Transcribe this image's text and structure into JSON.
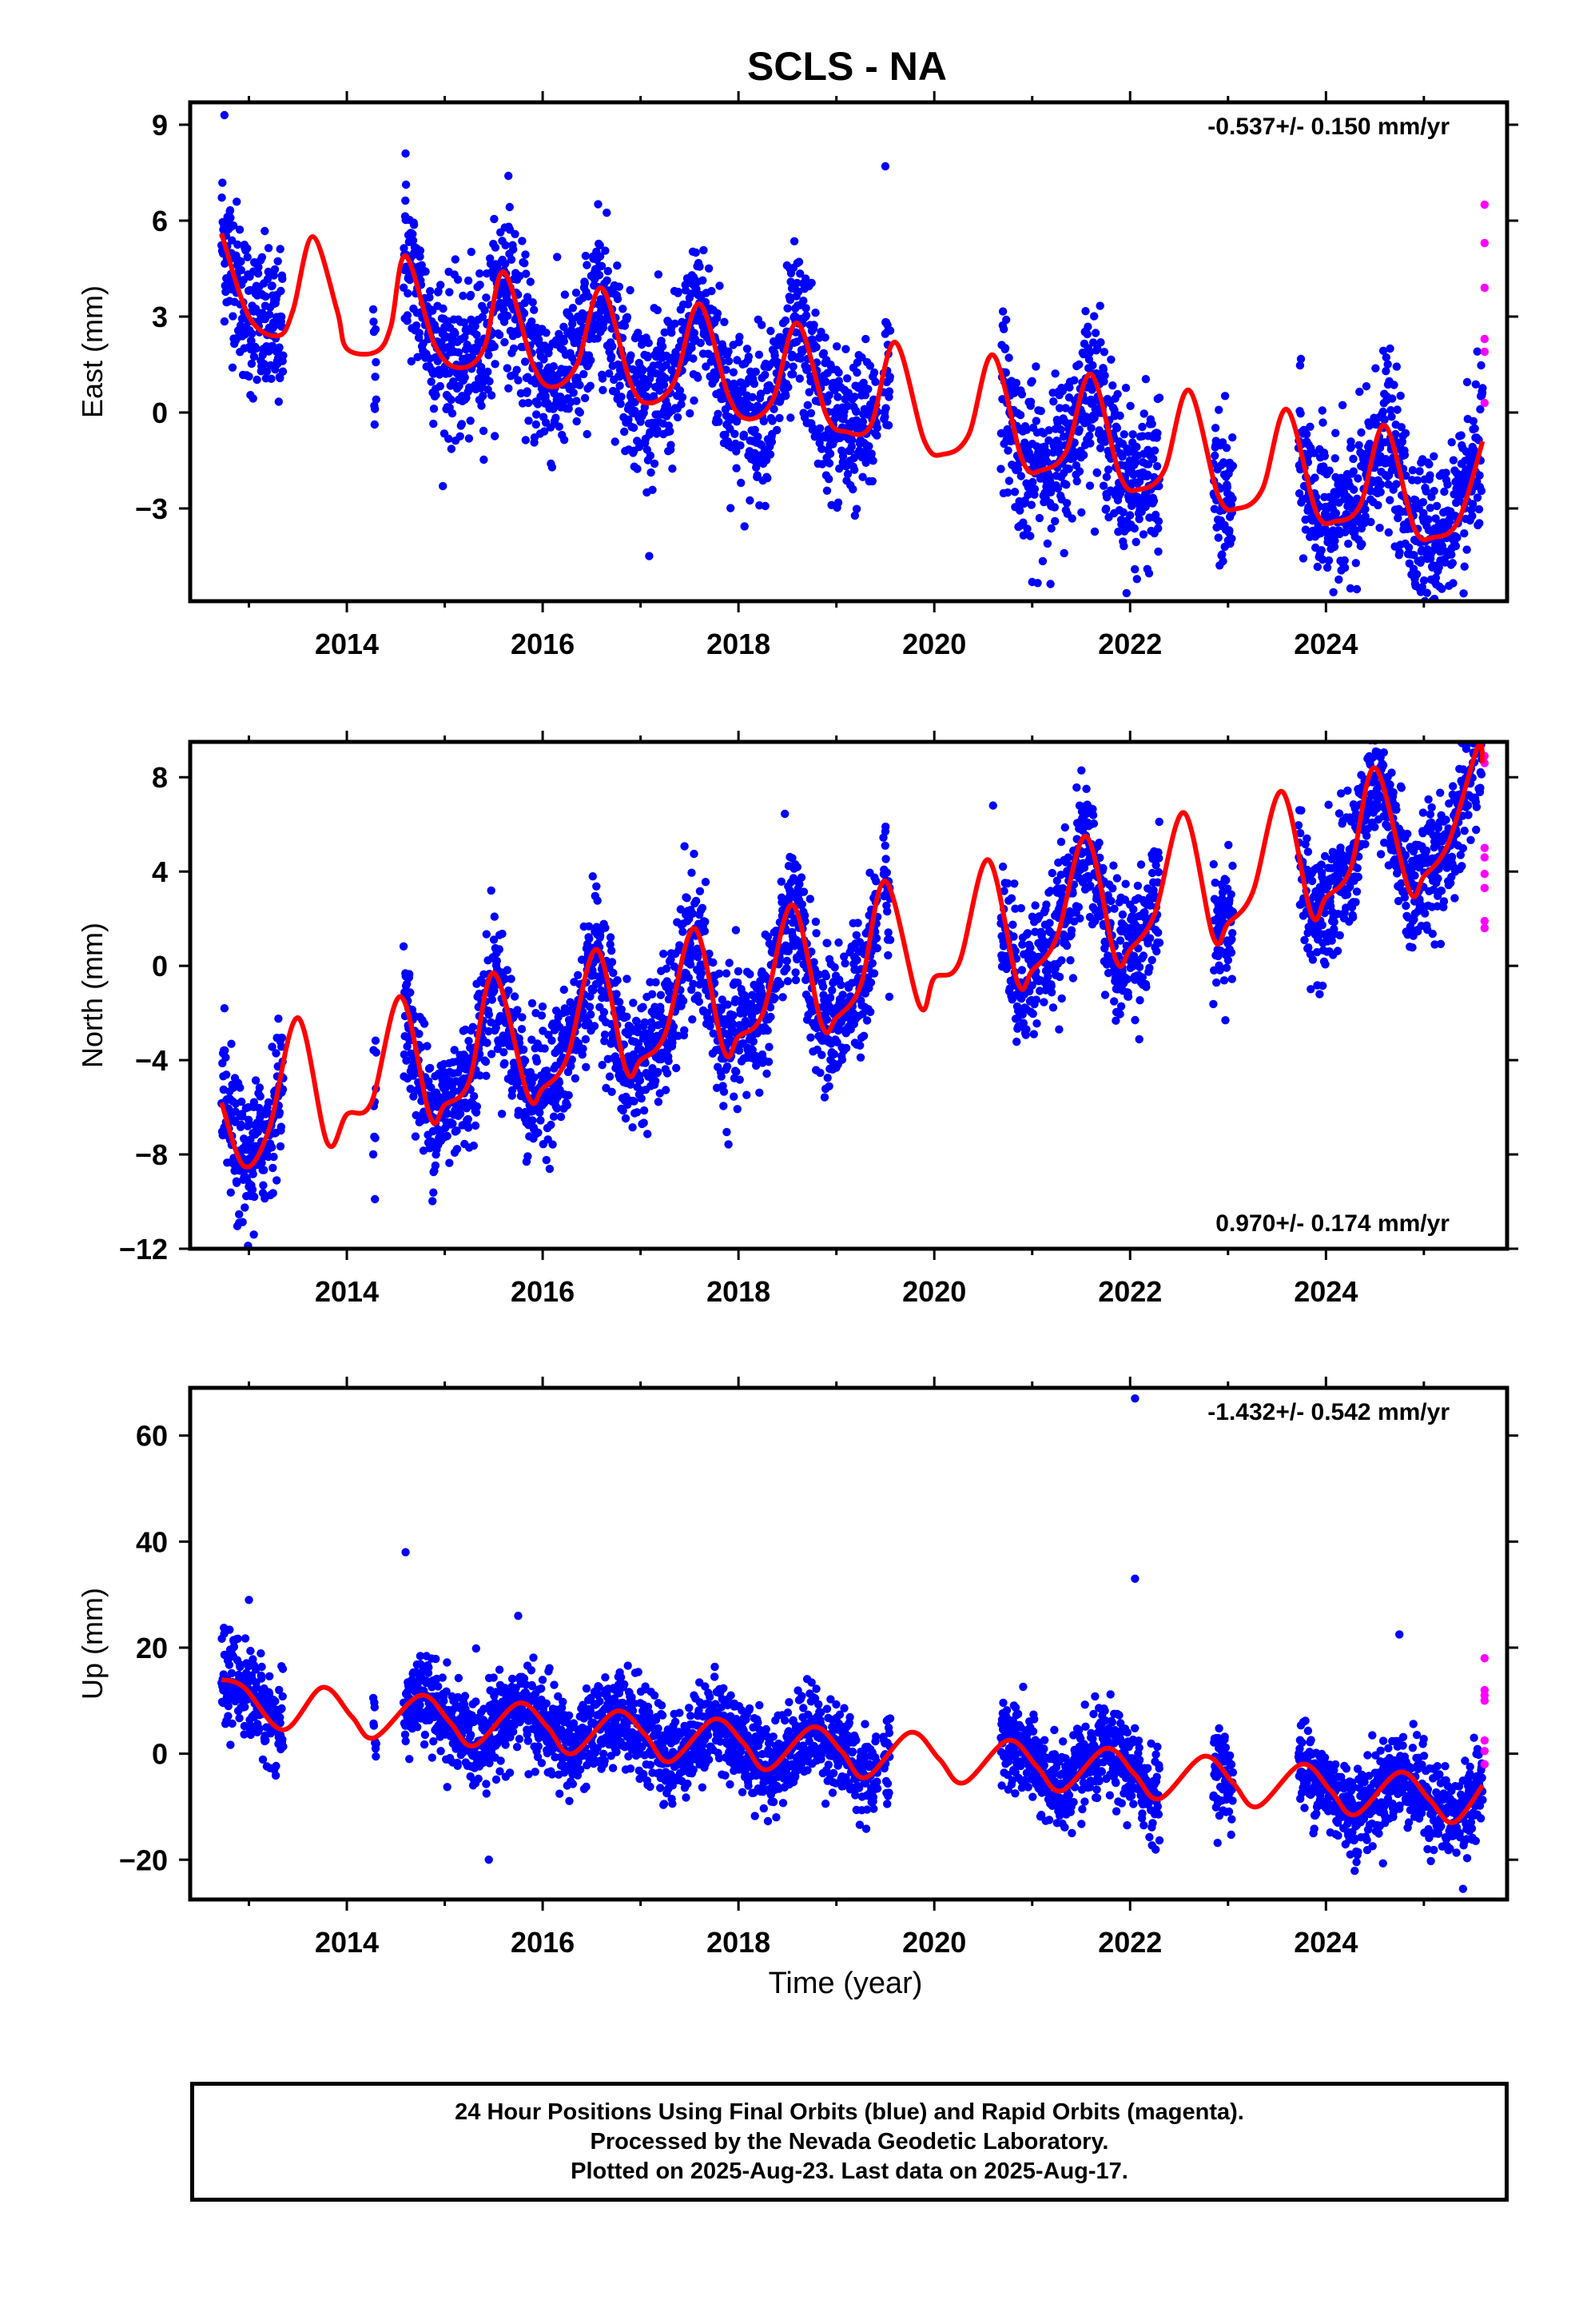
{
  "title": "SCLS - NA",
  "time_axis": {
    "label": "Time (year)",
    "ticks": [
      "2014",
      "2016",
      "2018",
      "2020",
      "2022",
      "2024"
    ]
  },
  "colors": {
    "final_orbits": "#0000ff",
    "rapid_orbits": "#ff00ff",
    "model_fit": "#ff0000",
    "axes": "#000000"
  },
  "footer": {
    "line1": "24 Hour Positions Using Final Orbits (blue) and Rapid Orbits (magenta).",
    "line2": "Processed by the Nevada Geodetic Laboratory.",
    "line3": "Plotted on 2025-Aug-23. Last data on 2025-Aug-17."
  },
  "chart_data": [
    {
      "type": "scatter",
      "component": "East",
      "ylabel": "East (mm)",
      "xlabel": "",
      "xlim": [
        2012.4,
        2025.85
      ],
      "ylim": [
        -5.9,
        9.7
      ],
      "yticks": [
        -3,
        0,
        3,
        6,
        9
      ],
      "xticks": [
        2014,
        2016,
        2018,
        2020,
        2022,
        2024
      ],
      "rate_label": "-0.537+/- 0.150 mm/yr",
      "rate_label_position": "top-right",
      "data_segments": [
        [
          2012.72,
          2013.35
        ],
        [
          2014.27,
          2014.3
        ],
        [
          2014.58,
          2019.42
        ],
        [
          2019.48,
          2019.55
        ],
        [
          2020.68,
          2022.3
        ],
        [
          2022.85,
          2023.05
        ],
        [
          2023.72,
          2025.6
        ]
      ],
      "series": [
        {
          "name": "Final Orbits",
          "style": "points",
          "approx_trend": {
            "intercept_at_2012_7": 5.6,
            "rate_mm_per_yr": -0.537,
            "annual_amplitude": 1.8,
            "scatter_sd": 1.2
          },
          "outliers": [
            {
              "x": 2012.75,
              "y": 9.3
            },
            {
              "x": 2014.6,
              "y": 8.1
            },
            {
              "x": 2015.65,
              "y": 7.4
            },
            {
              "x": 2019.5,
              "y": 7.7
            },
            {
              "x": 2021.0,
              "y": -5.3
            },
            {
              "x": 2024.25,
              "y": -5.5
            }
          ]
        },
        {
          "name": "Rapid Orbits",
          "style": "points",
          "points": [
            {
              "x": 2025.62,
              "y": 6.5
            },
            {
              "x": 2025.62,
              "y": 5.3
            },
            {
              "x": 2025.62,
              "y": 3.9
            },
            {
              "x": 2025.62,
              "y": 2.3
            },
            {
              "x": 2025.62,
              "y": 1.9
            },
            {
              "x": 2025.62,
              "y": 0.3
            }
          ]
        },
        {
          "name": "Model fit",
          "style": "line",
          "x": [
            2012.72,
            2013.0,
            2013.3,
            2013.45,
            2013.65,
            2013.9,
            2014.0,
            2014.3,
            2014.45,
            2014.6,
            2014.9,
            2015.15,
            2015.4,
            2015.6,
            2015.9,
            2016.1,
            2016.35,
            2016.6,
            2016.9,
            2017.1,
            2017.35,
            2017.6,
            2017.9,
            2018.1,
            2018.35,
            2018.6,
            2018.9,
            2019.1,
            2019.35,
            2019.6,
            2019.9,
            2020.1,
            2020.35,
            2020.6,
            2020.9,
            2021.1,
            2021.35,
            2021.6,
            2021.9,
            2022.1,
            2022.35,
            2022.6,
            2022.9,
            2023.1,
            2023.35,
            2023.6,
            2023.9,
            2024.1,
            2024.35,
            2024.6,
            2024.9,
            2025.1,
            2025.35,
            2025.6
          ],
          "y": [
            5.6,
            3.0,
            2.4,
            3.2,
            5.5,
            3.2,
            2.0,
            1.9,
            2.7,
            4.9,
            2.1,
            1.4,
            2.0,
            4.4,
            1.5,
            0.8,
            1.5,
            3.9,
            0.9,
            0.3,
            1.0,
            3.4,
            0.5,
            -0.2,
            0.4,
            2.8,
            -0.1,
            -0.6,
            -0.4,
            2.2,
            -0.9,
            -1.3,
            -0.7,
            1.8,
            -1.5,
            -1.8,
            -1.2,
            1.2,
            -2.0,
            -2.4,
            -1.8,
            0.7,
            -2.6,
            -3.0,
            -2.4,
            0.1,
            -3.1,
            -3.4,
            -2.9,
            -0.4,
            -3.6,
            -3.9,
            -3.4,
            -0.9
          ]
        }
      ]
    },
    {
      "type": "scatter",
      "component": "North",
      "ylabel": "North (mm)",
      "xlabel": "",
      "xlim": [
        2012.4,
        2025.85
      ],
      "ylim": [
        -12.0,
        9.5
      ],
      "yticks": [
        -12,
        -8,
        -4,
        0,
        4,
        8
      ],
      "xticks": [
        2014,
        2016,
        2018,
        2020,
        2022,
        2024
      ],
      "rate_label": "0.970+/- 0.174 mm/yr",
      "rate_label_position": "bottom-right",
      "data_segments": [
        [
          2012.72,
          2013.35
        ],
        [
          2014.27,
          2014.3
        ],
        [
          2014.58,
          2019.42
        ],
        [
          2019.48,
          2019.55
        ],
        [
          2020.68,
          2022.3
        ],
        [
          2022.85,
          2023.05
        ],
        [
          2023.72,
          2025.6
        ]
      ],
      "series": [
        {
          "name": "Final Orbits",
          "style": "points",
          "approx_trend": {
            "intercept_at_2012_7": -7.0,
            "rate_mm_per_yr": 0.97,
            "annual_amplitude": 2.3,
            "scatter_sd": 1.4
          },
          "outliers": [
            {
              "x": 2012.75,
              "y": -1.8
            },
            {
              "x": 2012.9,
              "y": -10.9
            },
            {
              "x": 2013.05,
              "y": -11.4
            },
            {
              "x": 2019.5,
              "y": 5.7
            },
            {
              "x": 2020.6,
              "y": 6.8
            },
            {
              "x": 2024.45,
              "y": 8.8
            }
          ]
        },
        {
          "name": "Rapid Orbits",
          "style": "points",
          "points": [
            {
              "x": 2025.62,
              "y": 8.9
            },
            {
              "x": 2025.62,
              "y": 8.6
            },
            {
              "x": 2025.62,
              "y": 5.0
            },
            {
              "x": 2025.62,
              "y": 4.6
            },
            {
              "x": 2025.62,
              "y": 3.9
            },
            {
              "x": 2025.62,
              "y": 3.3
            },
            {
              "x": 2025.62,
              "y": 1.9
            },
            {
              "x": 2025.62,
              "y": 1.6
            }
          ]
        },
        {
          "name": "Model fit",
          "style": "line",
          "x": [
            2012.72,
            2012.95,
            2013.2,
            2013.5,
            2013.8,
            2014.0,
            2014.25,
            2014.55,
            2014.85,
            2015.0,
            2015.25,
            2015.5,
            2015.85,
            2016.0,
            2016.25,
            2016.55,
            2016.85,
            2017.0,
            2017.25,
            2017.55,
            2017.85,
            2018.0,
            2018.25,
            2018.55,
            2018.85,
            2019.0,
            2019.25,
            2019.5,
            2019.85,
            2020.0,
            2020.25,
            2020.55,
            2020.85,
            2021.0,
            2021.25,
            2021.55,
            2021.85,
            2022.0,
            2022.25,
            2022.55,
            2022.85,
            2023.0,
            2023.25,
            2023.55,
            2023.85,
            2024.0,
            2024.25,
            2024.5,
            2024.85,
            2025.0,
            2025.25,
            2025.55,
            2025.6
          ],
          "y": [
            -5.8,
            -8.5,
            -7.0,
            -2.2,
            -7.5,
            -6.3,
            -5.8,
            -1.3,
            -6.4,
            -5.9,
            -4.9,
            -0.3,
            -5.5,
            -5.2,
            -3.9,
            0.7,
            -4.4,
            -4.0,
            -2.9,
            1.6,
            -3.6,
            -3.0,
            -2.0,
            2.6,
            -2.5,
            -2.2,
            -0.8,
            3.6,
            -1.7,
            -0.5,
            0.1,
            4.5,
            -0.7,
            -0.2,
            1.2,
            5.5,
            0.3,
            0.7,
            2.2,
            6.5,
            1.2,
            1.8,
            3.1,
            7.4,
            2.2,
            2.9,
            4.1,
            8.4,
            3.2,
            3.8,
            5.2,
            9.3,
            8.6
          ]
        }
      ]
    },
    {
      "type": "scatter",
      "component": "Up",
      "ylabel": "Up (mm)",
      "xlabel": "Time (year)",
      "xlim": [
        2012.4,
        2025.85
      ],
      "ylim": [
        -27.5,
        69.0
      ],
      "yticks": [
        -20,
        0,
        20,
        40,
        60
      ],
      "xticks": [
        2014,
        2016,
        2018,
        2020,
        2022,
        2024
      ],
      "rate_label": "-1.432+/- 0.542 mm/yr",
      "rate_label_position": "top-right",
      "data_segments": [
        [
          2012.72,
          2013.35
        ],
        [
          2014.27,
          2014.3
        ],
        [
          2014.58,
          2019.42
        ],
        [
          2019.48,
          2019.55
        ],
        [
          2020.68,
          2022.3
        ],
        [
          2022.85,
          2023.05
        ],
        [
          2023.72,
          2025.6
        ]
      ],
      "series": [
        {
          "name": "Final Orbits",
          "style": "points",
          "approx_trend": {
            "intercept_at_2012_7": 12.0,
            "rate_mm_per_yr": -1.432,
            "annual_amplitude": 5.5,
            "scatter_sd": 4.2
          },
          "outliers": [
            {
              "x": 2022.05,
              "y": 67.0
            },
            {
              "x": 2014.6,
              "y": 38.0
            },
            {
              "x": 2022.05,
              "y": 33.0
            },
            {
              "x": 2013.0,
              "y": 29.0
            },
            {
              "x": 2015.75,
              "y": 26.0
            },
            {
              "x": 2024.75,
              "y": 22.5
            },
            {
              "x": 2015.45,
              "y": -20.0
            },
            {
              "x": 2025.4,
              "y": -25.5
            }
          ]
        },
        {
          "name": "Rapid Orbits",
          "style": "points",
          "points": [
            {
              "x": 2025.62,
              "y": 18.0
            },
            {
              "x": 2025.62,
              "y": 12.0
            },
            {
              "x": 2025.62,
              "y": 11.0
            },
            {
              "x": 2025.62,
              "y": 10.0
            },
            {
              "x": 2025.62,
              "y": 2.5
            },
            {
              "x": 2025.62,
              "y": 0.5
            },
            {
              "x": 2025.62,
              "y": -2.0
            }
          ]
        },
        {
          "name": "Model fit",
          "style": "line",
          "x": [
            2012.72,
            2012.95,
            2013.35,
            2013.75,
            2014.05,
            2014.28,
            2014.75,
            2015.05,
            2015.3,
            2015.75,
            2016.05,
            2016.3,
            2016.75,
            2017.05,
            2017.3,
            2017.75,
            2018.05,
            2018.3,
            2018.75,
            2019.05,
            2019.3,
            2019.75,
            2020.05,
            2020.3,
            2020.75,
            2021.05,
            2021.3,
            2021.75,
            2022.05,
            2022.3,
            2022.75,
            2023.05,
            2023.3,
            2023.75,
            2024.05,
            2024.3,
            2024.75,
            2025.05,
            2025.3,
            2025.6
          ],
          "y": [
            14.0,
            12.5,
            4.5,
            12.5,
            7.0,
            3.0,
            11.0,
            6.0,
            1.5,
            9.5,
            5.0,
            0.0,
            8.0,
            3.5,
            -1.5,
            6.5,
            2.0,
            -3.0,
            5.0,
            0.5,
            -4.5,
            4.0,
            -1.0,
            -5.5,
            2.5,
            -2.5,
            -7.0,
            1.0,
            -4.0,
            -8.5,
            -0.5,
            -5.5,
            -10.0,
            -2.0,
            -7.0,
            -11.5,
            -3.5,
            -8.5,
            -13.0,
            -6.0
          ]
        }
      ]
    }
  ]
}
